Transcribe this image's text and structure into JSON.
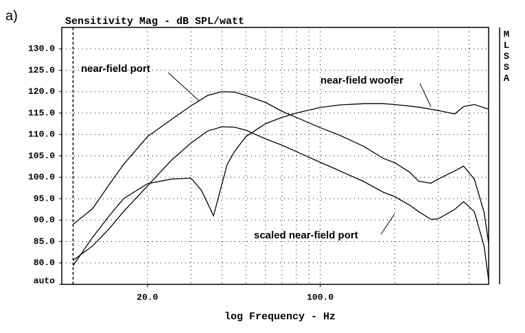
{
  "panel_label": "a)",
  "side_label": "MLSSA",
  "chart_data": {
    "type": "line",
    "title": "Sensitivity Mag - dB SPL/watt",
    "xlabel": "log Frequency - Hz",
    "xscale": "log",
    "xlim": [
      9,
      480
    ],
    "ylim": [
      75,
      135
    ],
    "xticks": [
      {
        "value": 20,
        "label": "20.0"
      },
      {
        "value": 100,
        "label": "100.0"
      }
    ],
    "xgrid": [
      10,
      20,
      30,
      40,
      50,
      60,
      70,
      80,
      90,
      100,
      200,
      300,
      400
    ],
    "yticks": [
      {
        "value": 75,
        "label": "auto"
      },
      {
        "value": 80,
        "label": "80.0"
      },
      {
        "value": 85,
        "label": "85.0"
      },
      {
        "value": 90,
        "label": "90.0"
      },
      {
        "value": 95,
        "label": "95.0"
      },
      {
        "value": 100,
        "label": "100.0"
      },
      {
        "value": 105,
        "label": "105.0"
      },
      {
        "value": 110,
        "label": "110.0"
      },
      {
        "value": 115,
        "label": "115.0"
      },
      {
        "value": 120,
        "label": "120.0"
      },
      {
        "value": 125,
        "label": "125.0"
      },
      {
        "value": 130,
        "label": "130.0"
      }
    ],
    "grid": true,
    "series": [
      {
        "name": "near-field port",
        "color": "#000000",
        "x": [
          10,
          12,
          14,
          16,
          20,
          25,
          30,
          35,
          40,
          45,
          50,
          60,
          70,
          80,
          100,
          120,
          150,
          180,
          200,
          230,
          250,
          280,
          300,
          350,
          380,
          420,
          460,
          480
        ],
        "values": [
          89,
          92.7,
          98.3,
          103,
          109.5,
          113.5,
          116.7,
          119.1,
          120,
          119.9,
          119.1,
          117.5,
          115.4,
          114,
          111.6,
          109.8,
          107.2,
          104.4,
          103.4,
          101.2,
          99.1,
          98.6,
          99.6,
          101.5,
          102.6,
          99.6,
          91.9,
          84.6
        ]
      },
      {
        "name": "near-field woofer",
        "color": "#000000",
        "x": [
          10,
          12,
          14,
          16,
          20,
          25,
          30,
          33,
          35,
          37,
          39,
          42,
          45,
          50,
          60,
          70,
          80,
          100,
          120,
          150,
          180,
          200,
          250,
          300,
          350,
          380,
          420,
          480
        ],
        "values": [
          79.4,
          86,
          91,
          95,
          98.5,
          99.6,
          99.8,
          97,
          94,
          91,
          96,
          103,
          106,
          109.5,
          112.5,
          114,
          115,
          116.3,
          116.9,
          117.2,
          117.2,
          117,
          116.4,
          115.6,
          114.8,
          116.5,
          117,
          115.9
        ]
      },
      {
        "name": "scaled near-field port",
        "color": "#000000",
        "x": [
          10,
          12,
          14,
          16,
          20,
          25,
          30,
          35,
          40,
          45,
          50,
          60,
          70,
          80,
          100,
          120,
          150,
          180,
          200,
          230,
          250,
          280,
          300,
          350,
          380,
          420,
          460,
          480
        ],
        "values": [
          80.6,
          84,
          88,
          92,
          98,
          104,
          108,
          110.8,
          111.8,
          111.7,
          111,
          109,
          107.5,
          106,
          103.5,
          101.5,
          99,
          96.5,
          95.5,
          93.5,
          92,
          90.2,
          90.3,
          92.5,
          94.3,
          92,
          84,
          76
        ]
      }
    ]
  }
}
